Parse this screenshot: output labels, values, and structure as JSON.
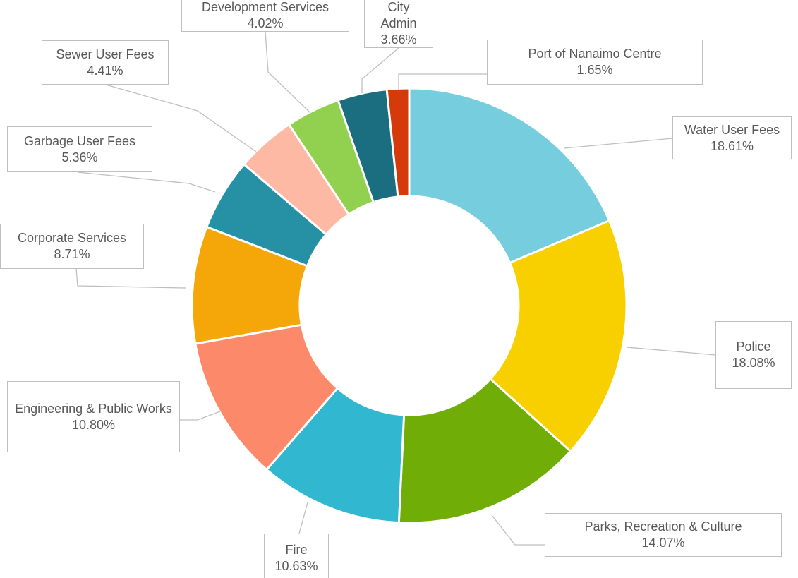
{
  "chart_data": {
    "type": "donut",
    "categories": [
      "Water User Fees",
      "Police",
      "Parks, Recreation & Culture",
      "Fire",
      "Engineering & Public Works",
      "Corporate Services",
      "Garbage User Fees",
      "Sewer User Fees",
      "Development Services",
      "City Admin",
      "Port of Nanaimo Centre"
    ],
    "values": [
      18.61,
      18.08,
      14.07,
      10.63,
      10.8,
      8.71,
      5.36,
      4.41,
      4.02,
      3.66,
      1.65
    ],
    "value_labels": [
      "18.61%",
      "18.08%",
      "14.07%",
      "10.63%",
      "10.80%",
      "8.71%",
      "5.36%",
      "4.41%",
      "4.02%",
      "3.66%",
      "1.65%"
    ],
    "colors": [
      "#75cdde",
      "#f8d000",
      "#70ad07",
      "#31b7cf",
      "#fc8a6a",
      "#f5a70a",
      "#2691a5",
      "#feb9a4",
      "#92d050",
      "#1a6e80",
      "#d63a0a"
    ]
  }
}
